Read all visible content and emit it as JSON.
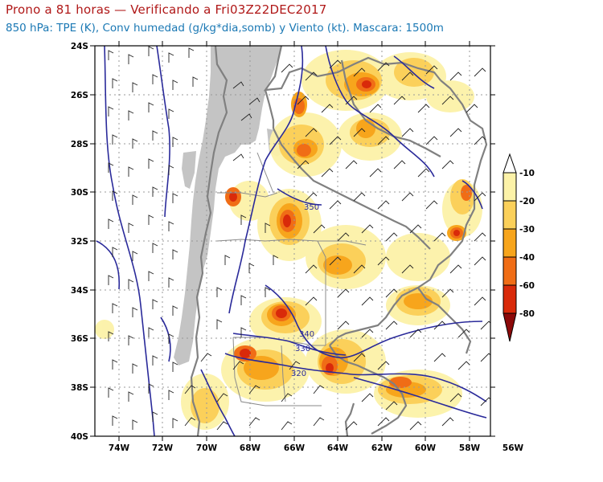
{
  "header": {
    "title": "Prono a 81 horas — Verificando a Fri03Z22DEC2017",
    "subtitle": "850 hPa: TPE (K), Conv humedad (g/kg*dia,somb) y Viento (kt). Mascara: 1500m"
  },
  "map": {
    "lat_labels": [
      "24S",
      "26S",
      "28S",
      "30S",
      "32S",
      "34S",
      "36S",
      "38S",
      "40S"
    ],
    "lon_labels": [
      "74W",
      "72W",
      "70W",
      "68W",
      "66W",
      "64W",
      "62W",
      "60W",
      "58W",
      "56W"
    ],
    "contour_labels": [
      "350",
      "340",
      "330",
      "320"
    ],
    "mask_color": "#c4c4c4",
    "contour_color": "#2a2a9a",
    "border_color": "#808080"
  },
  "colorbar": {
    "labels": [
      "-10",
      "-20",
      "-30",
      "-40",
      "-60",
      "-80"
    ],
    "colors": [
      "#ffffff",
      "#fcf2a8",
      "#fbd05a",
      "#f7a51c",
      "#f06d16",
      "#d92a0a",
      "#8c0909"
    ]
  }
}
